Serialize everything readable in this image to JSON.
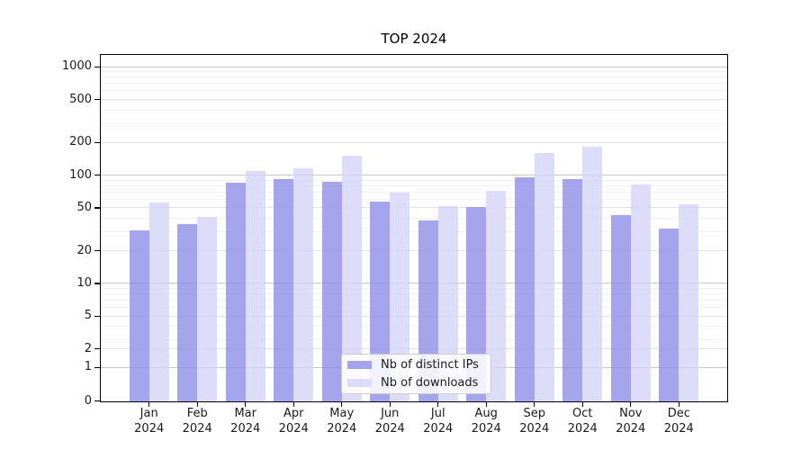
{
  "chart_data": {
    "type": "bar",
    "title": "TOP 2024",
    "categories": [
      "Jan 2024",
      "Feb 2024",
      "Mar 2024",
      "Apr 2024",
      "May 2024",
      "Jun 2024",
      "Jul 2024",
      "Aug 2024",
      "Sep 2024",
      "Oct 2024",
      "Nov 2024",
      "Dec 2024"
    ],
    "series": [
      {
        "name": "Nb of distinct IPs",
        "color": "#a5a5ee",
        "fill": "rgba(140,140,233,0.78)",
        "values": [
          31,
          35,
          85,
          92,
          87,
          57,
          38,
          51,
          95,
          91,
          43,
          32
        ]
      },
      {
        "name": "Nb of downloads",
        "color": "#dcdcf7",
        "fill": "rgba(211,211,247,0.78)",
        "values": [
          56,
          41,
          110,
          115,
          150,
          69,
          52,
          71,
          160,
          182,
          82,
          54
        ]
      }
    ],
    "yticks": [
      0,
      1,
      2,
      5,
      10,
      20,
      50,
      100,
      200,
      500,
      1000
    ],
    "yscale": "symlog",
    "ylim": [
      0,
      1000
    ],
    "xlabel": "",
    "ylabel": "",
    "grid": true,
    "legend_position": "lower-center",
    "colors": {
      "grid_major": "#c6c6c6",
      "grid_tick": "#e2e2e2",
      "grid_minor": "#f0f0f0",
      "axis": "#000000",
      "text": "#1a1a1a",
      "background": "#ffffff"
    }
  }
}
